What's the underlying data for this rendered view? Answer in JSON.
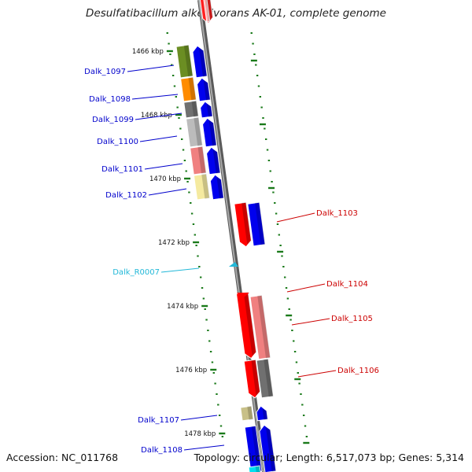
{
  "title": "Desulfatibacillum alkenivorans AK-01, complete genome",
  "footer": {
    "accession": "Accession: NC_011768",
    "topology": "Topology: circular; Length: 6,517,073 bp; Genes: 5,314"
  },
  "colors": {
    "backbone": "#7a7a7a",
    "tick": "#1a7a1a",
    "forward_label": "#0000cc",
    "reverse_label": "#cc0000",
    "rna_label": "#22b8d8"
  },
  "ticks": [
    {
      "kbp": 1466,
      "label": "1466 kbp"
    },
    {
      "kbp": 1468,
      "label": "1468 kbp"
    },
    {
      "kbp": 1470,
      "label": "1470 kbp"
    },
    {
      "kbp": 1472,
      "label": "1472 kbp"
    },
    {
      "kbp": 1474,
      "label": "1474 kbp"
    },
    {
      "kbp": 1476,
      "label": "1476 kbp"
    },
    {
      "kbp": 1478,
      "label": "1478 kbp"
    }
  ],
  "genes": [
    {
      "id": "Dalk_1097",
      "strand": "+",
      "cog_color": "#6b8e23"
    },
    {
      "id": "Dalk_1098",
      "strand": "+",
      "cog_color": "#ff8c00"
    },
    {
      "id": "Dalk_1099",
      "strand": "+",
      "cog_color": "#707070"
    },
    {
      "id": "Dalk_1100",
      "strand": "+",
      "cog_color": "#bcbcbc"
    },
    {
      "id": "Dalk_1101",
      "strand": "+",
      "cog_color": "#f08080"
    },
    {
      "id": "Dalk_1102",
      "strand": "+",
      "cog_color": "#f5eaa0"
    },
    {
      "id": "Dalk_1103",
      "strand": "-",
      "cog_color": "#0000ee"
    },
    {
      "id": "Dalk_R0007",
      "strand": "+",
      "type": "rna",
      "cog_color": "#22b8d8"
    },
    {
      "id": "Dalk_1104",
      "strand": "-",
      "cog_color": "#ff0000"
    },
    {
      "id": "Dalk_1105",
      "strand": "-",
      "cog_color": "#f08080"
    },
    {
      "id": "Dalk_1106",
      "strand": "-",
      "cog_color": "#707070"
    },
    {
      "id": "Dalk_1107",
      "strand": "+",
      "cog_color": "#c8c088"
    },
    {
      "id": "Dalk_1108",
      "strand": "+",
      "cog_color": "#0000ee"
    }
  ]
}
